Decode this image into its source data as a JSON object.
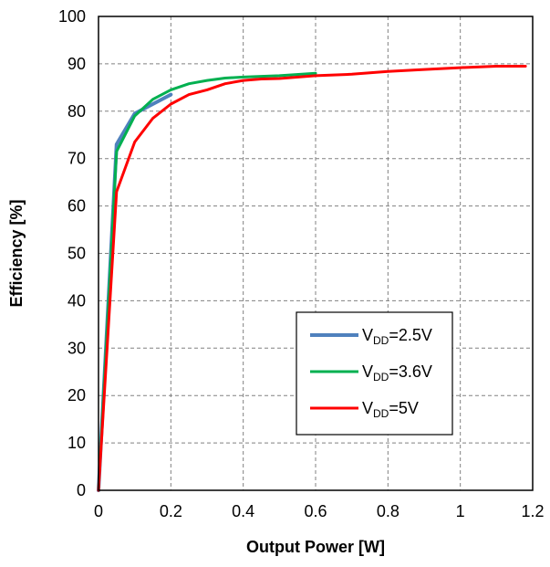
{
  "chart_data": {
    "type": "line",
    "xlabel": "Output Power [W]",
    "ylabel": "Efficiency [%]",
    "xlim": [
      0,
      1.2
    ],
    "ylim": [
      0,
      100
    ],
    "x_ticks": [
      "0",
      "0.2",
      "0.4",
      "0.6",
      "0.8",
      "1",
      "1.2"
    ],
    "y_ticks": [
      "0",
      "10",
      "20",
      "30",
      "40",
      "50",
      "60",
      "70",
      "80",
      "90",
      "100"
    ],
    "grid": true,
    "legend_position": "lower-right",
    "series": [
      {
        "name": "VDD=2.5V",
        "legend_main": "V",
        "legend_sub": "DD",
        "legend_rest": "=2.5V",
        "color": "#4f81bd",
        "points": [
          [
            0,
            0
          ],
          [
            0.05,
            73
          ],
          [
            0.1,
            79.5
          ],
          [
            0.15,
            81.5
          ],
          [
            0.2,
            83.5
          ]
        ]
      },
      {
        "name": "VDD=3.6V",
        "legend_main": "V",
        "legend_sub": "DD",
        "legend_rest": "=3.6V",
        "color": "#00b050",
        "points": [
          [
            0,
            0
          ],
          [
            0.05,
            71.5
          ],
          [
            0.1,
            79
          ],
          [
            0.15,
            82.5
          ],
          [
            0.2,
            84.5
          ],
          [
            0.25,
            85.8
          ],
          [
            0.3,
            86.5
          ],
          [
            0.35,
            87
          ],
          [
            0.4,
            87.2
          ],
          [
            0.5,
            87.5
          ],
          [
            0.6,
            88
          ]
        ]
      },
      {
        "name": "VDD=5V",
        "legend_main": "V",
        "legend_sub": "DD",
        "legend_rest": "=5V",
        "color": "#ff0000",
        "points": [
          [
            0,
            0
          ],
          [
            0.05,
            63
          ],
          [
            0.1,
            73.5
          ],
          [
            0.15,
            78.5
          ],
          [
            0.2,
            81.5
          ],
          [
            0.25,
            83.5
          ],
          [
            0.3,
            84.5
          ],
          [
            0.35,
            85.8
          ],
          [
            0.4,
            86.5
          ],
          [
            0.45,
            86.8
          ],
          [
            0.5,
            86.9
          ],
          [
            0.6,
            87.5
          ],
          [
            0.7,
            87.8
          ],
          [
            0.8,
            88.4
          ],
          [
            0.9,
            88.8
          ],
          [
            1.0,
            89.2
          ],
          [
            1.1,
            89.5
          ],
          [
            1.18,
            89.5
          ]
        ]
      }
    ]
  }
}
